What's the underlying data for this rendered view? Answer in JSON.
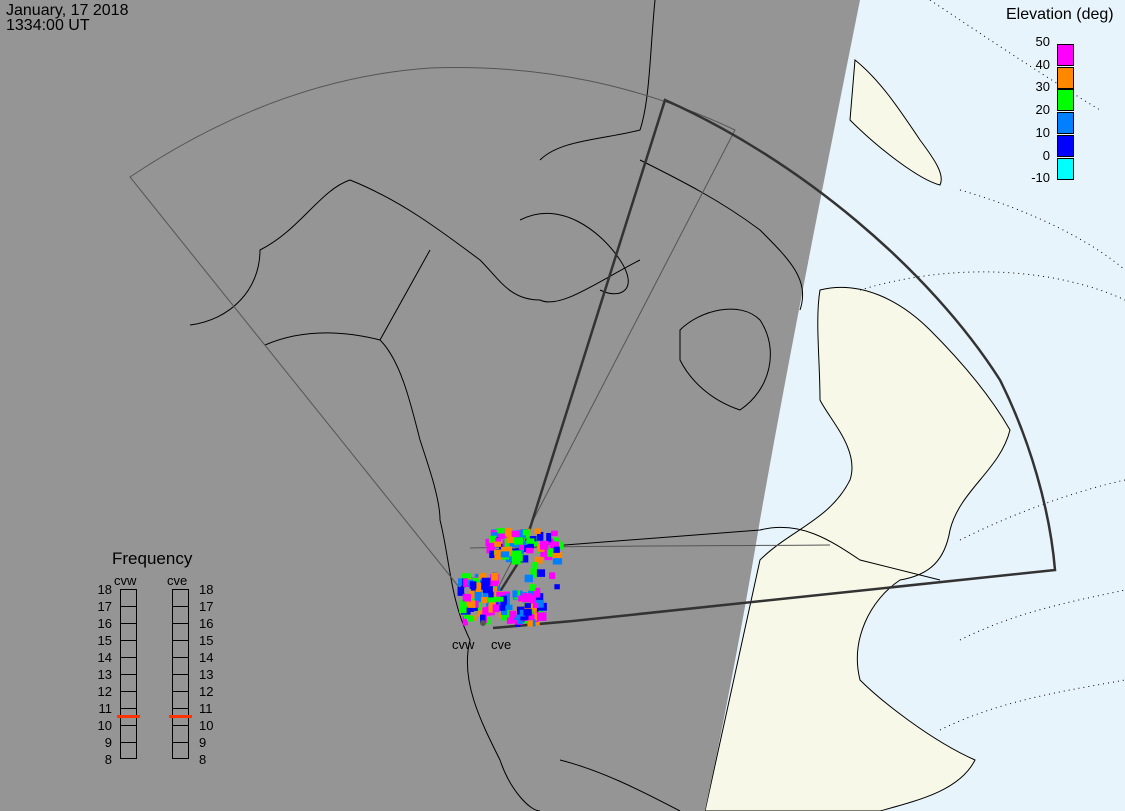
{
  "header": {
    "date": "January, 17 2018",
    "time": "1334:00 UT"
  },
  "colors": {
    "night": "#959595",
    "day_land": "#f8f8e8",
    "day_ocean": "#e8f4fc",
    "freq_marker": "#ff3300"
  },
  "elevation_legend": {
    "title": "Elevation (deg)",
    "ticks": [
      "50",
      "40",
      "30",
      "20",
      "10",
      "0",
      "-10"
    ],
    "bins": [
      {
        "range": "40-50",
        "color": "#ff00ff"
      },
      {
        "range": "30-40",
        "color": "#ff8800"
      },
      {
        "range": "20-30",
        "color": "#00ff00"
      },
      {
        "range": "10-20",
        "color": "#0080ff"
      },
      {
        "range": "0-10",
        "color": "#0000ff"
      },
      {
        "range": "-10-0",
        "color": "#00ffff"
      }
    ]
  },
  "frequency_panel": {
    "title": "Frequency",
    "radars": [
      {
        "name": "cvw",
        "freq_mhz": 10.5
      },
      {
        "name": "cve",
        "freq_mhz": 10.5
      }
    ],
    "ticks": [
      "18",
      "17",
      "16",
      "15",
      "14",
      "13",
      "12",
      "11",
      "10",
      "9",
      "8"
    ]
  },
  "radar_labels": [
    "cvw",
    "cve"
  ]
}
